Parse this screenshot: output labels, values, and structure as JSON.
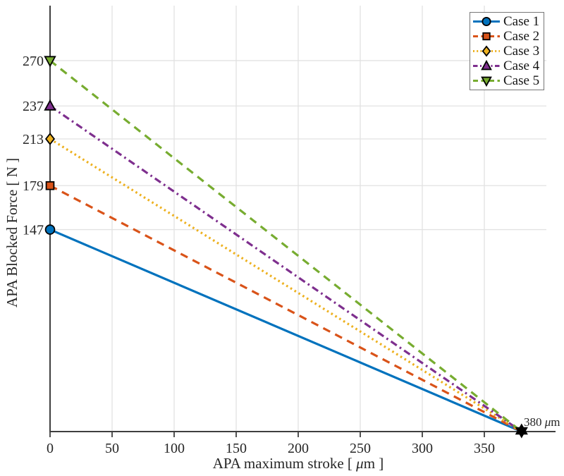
{
  "figure": {
    "background": "#ffffff",
    "axis_color": "#3f3f3f",
    "grid_color": "#e2e2e2",
    "text_color": "#262626"
  },
  "chart_data": {
    "type": "line",
    "title": "",
    "xlabel": "APA maximum stroke [ μm ]",
    "ylabel": "APA Blocked Force [ N ]",
    "xlim": [
      0,
      400
    ],
    "ylim": [
      0,
      310
    ],
    "xticks": [
      0,
      50,
      100,
      150,
      200,
      250,
      300,
      350
    ],
    "yticks": [
      147,
      179,
      213,
      237,
      270
    ],
    "grid": true,
    "legend_position": "top-right",
    "series": [
      {
        "name": "Case 1",
        "color": "#0072BD",
        "style": "solid",
        "marker": "circle",
        "points": [
          [
            0,
            147
          ],
          [
            380,
            0
          ]
        ]
      },
      {
        "name": "Case 2",
        "color": "#D95319",
        "style": "dashed",
        "marker": "square",
        "points": [
          [
            0,
            179
          ],
          [
            380,
            0
          ]
        ]
      },
      {
        "name": "Case 3",
        "color": "#EDB120",
        "style": "dotted",
        "marker": "diamond",
        "points": [
          [
            0,
            213
          ],
          [
            380,
            0
          ]
        ]
      },
      {
        "name": "Case 4",
        "color": "#7E2F8E",
        "style": "dashdot",
        "marker": "triangle-up",
        "points": [
          [
            0,
            237
          ],
          [
            380,
            0
          ]
        ]
      },
      {
        "name": "Case 5",
        "color": "#77AC30",
        "style": "dashed",
        "marker": "triangle-down",
        "points": [
          [
            0,
            270
          ],
          [
            380,
            0
          ]
        ]
      }
    ],
    "convergence_point": {
      "x": 380,
      "y": 0,
      "marker": "hexagram",
      "color": "#000000",
      "label": "380 μm"
    }
  }
}
